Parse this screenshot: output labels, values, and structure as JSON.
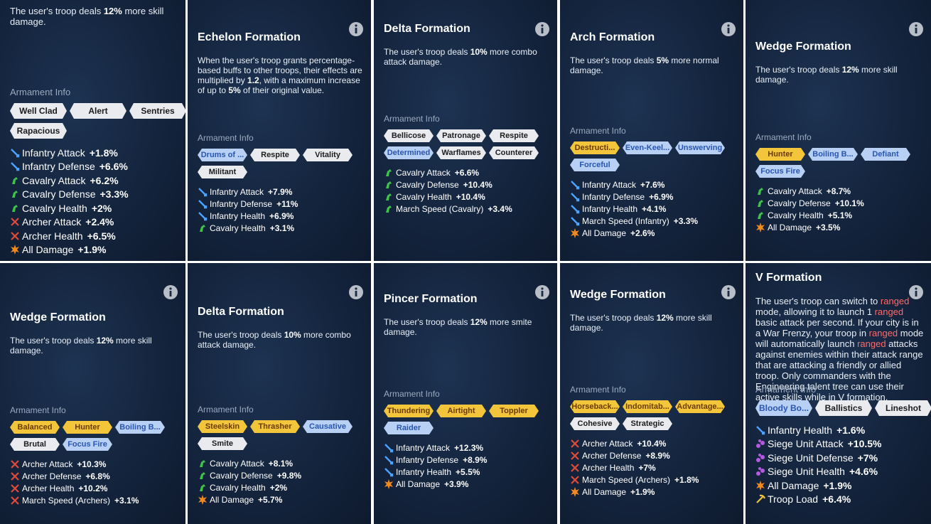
{
  "panels": [
    {
      "description": [
        {
          "text": "The user's troop deals "
        },
        {
          "text": "12%",
          "style": "bold"
        },
        {
          "text": " more skill damage."
        }
      ],
      "section_label": "Armament Info",
      "tags": [
        {
          "label": "Well Clad",
          "color": "white"
        },
        {
          "label": "Alert",
          "color": "white"
        },
        {
          "label": "Sentries",
          "color": "white"
        },
        {
          "label": "Rapacious",
          "color": "white"
        }
      ],
      "stats": [
        {
          "name": "Infantry Attack",
          "value": "+1.8%",
          "kind": "infantry"
        },
        {
          "name": "Infantry Defense",
          "value": "+6.6%",
          "kind": "infantry"
        },
        {
          "name": "Cavalry Attack",
          "value": "+6.2%",
          "kind": "cavalry"
        },
        {
          "name": "Cavalry Defense",
          "value": "+3.3%",
          "kind": "cavalry"
        },
        {
          "name": "Cavalry Health",
          "value": "+2%",
          "kind": "cavalry"
        },
        {
          "name": "Archer Attack",
          "value": "+2.4%",
          "kind": "archer"
        },
        {
          "name": "Archer Health",
          "value": "+6.5%",
          "kind": "archer"
        },
        {
          "name": "All Damage",
          "value": "+1.9%",
          "kind": "damage"
        }
      ]
    },
    {
      "title": "Echelon Formation",
      "description": [
        {
          "text": "When the user's troop grants percentage-based buffs to other troops, their effects are multiplied by "
        },
        {
          "text": "1.2",
          "style": "bold"
        },
        {
          "text": ", with a maximum increase of up to "
        },
        {
          "text": "5%",
          "style": "bold"
        },
        {
          "text": " of their original value."
        }
      ],
      "section_label": "Armament Info",
      "tags": [
        {
          "label": "Drums of ...",
          "color": "blue"
        },
        {
          "label": "Respite",
          "color": "white"
        },
        {
          "label": "Vitality",
          "color": "white"
        },
        {
          "label": "Militant",
          "color": "white"
        }
      ],
      "stats": [
        {
          "name": "Infantry Attack",
          "value": "+7.9%",
          "kind": "infantry"
        },
        {
          "name": "Infantry Defense",
          "value": "+11%",
          "kind": "infantry"
        },
        {
          "name": "Infantry Health",
          "value": "+6.9%",
          "kind": "infantry"
        },
        {
          "name": "Cavalry Health",
          "value": "+3.1%",
          "kind": "cavalry"
        }
      ]
    },
    {
      "title": "Delta Formation",
      "description": [
        {
          "text": "The user's troop deals "
        },
        {
          "text": "10%",
          "style": "bold"
        },
        {
          "text": " more combo attack damage."
        }
      ],
      "section_label": "Armament Info",
      "tags": [
        {
          "label": "Bellicose",
          "color": "white"
        },
        {
          "label": "Patronage",
          "color": "white"
        },
        {
          "label": "Respite",
          "color": "white"
        },
        {
          "label": "Determined",
          "color": "blue"
        },
        {
          "label": "Warflames",
          "color": "white"
        },
        {
          "label": "Counterer",
          "color": "white"
        }
      ],
      "stats": [
        {
          "name": "Cavalry Attack",
          "value": "+6.6%",
          "kind": "cavalry"
        },
        {
          "name": "Cavalry Defense",
          "value": "+10.4%",
          "kind": "cavalry"
        },
        {
          "name": "Cavalry Health",
          "value": "+10.4%",
          "kind": "cavalry"
        },
        {
          "name": "March Speed (Cavalry)",
          "value": "+3.4%",
          "kind": "cavalry"
        }
      ]
    },
    {
      "title": "Arch Formation",
      "description": [
        {
          "text": "The user's troop deals "
        },
        {
          "text": "5%",
          "style": "bold"
        },
        {
          "text": " more normal damage."
        }
      ],
      "section_label": "Armament Info",
      "tags": [
        {
          "label": "Destructi...",
          "color": "gold"
        },
        {
          "label": "Even-Keel...",
          "color": "blue"
        },
        {
          "label": "Unswerving",
          "color": "blue"
        },
        {
          "label": "Forceful",
          "color": "blue"
        }
      ],
      "stats": [
        {
          "name": "Infantry Attack",
          "value": "+7.6%",
          "kind": "infantry"
        },
        {
          "name": "Infantry Defense",
          "value": "+6.9%",
          "kind": "infantry"
        },
        {
          "name": "Infantry Health",
          "value": "+4.1%",
          "kind": "infantry"
        },
        {
          "name": "March Speed (Infantry)",
          "value": "+3.3%",
          "kind": "infantry"
        },
        {
          "name": "All Damage",
          "value": "+2.6%",
          "kind": "damage"
        }
      ]
    },
    {
      "title": "Wedge Formation",
      "description": [
        {
          "text": "The user's troop deals "
        },
        {
          "text": "12%",
          "style": "bold"
        },
        {
          "text": " more skill damage."
        }
      ],
      "section_label": "Armament Info",
      "tags": [
        {
          "label": "Hunter",
          "color": "gold"
        },
        {
          "label": "Boiling B...",
          "color": "blue"
        },
        {
          "label": "Defiant",
          "color": "blue"
        },
        {
          "label": "Focus Fire",
          "color": "blue"
        }
      ],
      "stats": [
        {
          "name": "Cavalry Attack",
          "value": "+8.7%",
          "kind": "cavalry"
        },
        {
          "name": "Cavalry Defense",
          "value": "+10.1%",
          "kind": "cavalry"
        },
        {
          "name": "Cavalry Health",
          "value": "+5.1%",
          "kind": "cavalry"
        },
        {
          "name": "All Damage",
          "value": "+3.5%",
          "kind": "damage"
        }
      ]
    },
    {
      "title": "Wedge Formation",
      "description": [
        {
          "text": "The user's troop deals "
        },
        {
          "text": "12%",
          "style": "bold"
        },
        {
          "text": " more skill damage."
        }
      ],
      "section_label": "Armament Info",
      "tags": [
        {
          "label": "Balanced",
          "color": "gold"
        },
        {
          "label": "Hunter",
          "color": "gold"
        },
        {
          "label": "Boiling B...",
          "color": "blue"
        },
        {
          "label": "Brutal",
          "color": "white"
        },
        {
          "label": "Focus Fire",
          "color": "blue"
        }
      ],
      "stats": [
        {
          "name": "Archer Attack",
          "value": "+10.3%",
          "kind": "archer"
        },
        {
          "name": "Archer Defense",
          "value": "+6.8%",
          "kind": "archer"
        },
        {
          "name": "Archer Health",
          "value": "+10.2%",
          "kind": "archer"
        },
        {
          "name": "March Speed (Archers)",
          "value": "+3.1%",
          "kind": "archer"
        }
      ]
    },
    {
      "title": "Delta Formation",
      "description": [
        {
          "text": "The user's troop deals "
        },
        {
          "text": "10%",
          "style": "bold"
        },
        {
          "text": " more combo attack damage."
        }
      ],
      "section_label": "Armament Info",
      "tags": [
        {
          "label": "Steelskin",
          "color": "gold"
        },
        {
          "label": "Thrasher",
          "color": "gold"
        },
        {
          "label": "Causative",
          "color": "blue"
        },
        {
          "label": "Smite",
          "color": "white"
        }
      ],
      "stats": [
        {
          "name": "Cavalry Attack",
          "value": "+8.1%",
          "kind": "cavalry"
        },
        {
          "name": "Cavalry Defense",
          "value": "+9.8%",
          "kind": "cavalry"
        },
        {
          "name": "Cavalry Health",
          "value": "+2%",
          "kind": "cavalry"
        },
        {
          "name": "All Damage",
          "value": "+5.7%",
          "kind": "damage"
        }
      ]
    },
    {
      "title": "Pincer Formation",
      "description": [
        {
          "text": "The user's troop deals "
        },
        {
          "text": "12%",
          "style": "bold"
        },
        {
          "text": " more smite damage."
        }
      ],
      "section_label": "Armament Info",
      "tags": [
        {
          "label": "Thundering",
          "color": "gold"
        },
        {
          "label": "Airtight",
          "color": "gold"
        },
        {
          "label": "Toppler",
          "color": "gold"
        },
        {
          "label": "Raider",
          "color": "blue"
        }
      ],
      "stats": [
        {
          "name": "Infantry Attack",
          "value": "+12.3%",
          "kind": "infantry"
        },
        {
          "name": "Infantry Defense",
          "value": "+8.9%",
          "kind": "infantry"
        },
        {
          "name": "Infantry Health",
          "value": "+5.5%",
          "kind": "infantry"
        },
        {
          "name": "All Damage",
          "value": "+3.9%",
          "kind": "damage"
        }
      ]
    },
    {
      "title": "Wedge Formation",
      "description": [
        {
          "text": "The user's troop deals "
        },
        {
          "text": "12%",
          "style": "bold"
        },
        {
          "text": " more skill damage."
        }
      ],
      "section_label": "Armament Info",
      "tags": [
        {
          "label": "Horseback...",
          "color": "gold"
        },
        {
          "label": "Indomitab...",
          "color": "gold"
        },
        {
          "label": "Advantage...",
          "color": "gold"
        },
        {
          "label": "Cohesive",
          "color": "white"
        },
        {
          "label": "Strategic",
          "color": "white"
        }
      ],
      "stats": [
        {
          "name": "Archer Attack",
          "value": "+10.4%",
          "kind": "archer"
        },
        {
          "name": "Archer Defense",
          "value": "+8.9%",
          "kind": "archer"
        },
        {
          "name": "Archer Health",
          "value": "+7%",
          "kind": "archer"
        },
        {
          "name": "March Speed (Archers)",
          "value": "+1.8%",
          "kind": "archer"
        },
        {
          "name": "All Damage",
          "value": "+1.9%",
          "kind": "damage"
        }
      ]
    },
    {
      "title": "V Formation",
      "description": [
        {
          "text": "The user's troop can switch to "
        },
        {
          "text": "ranged",
          "style": "red"
        },
        {
          "text": " mode, allowing it to launch 1 "
        },
        {
          "text": "ranged",
          "style": "red"
        },
        {
          "text": " basic attack per second. If your city is in a War Frenzy, your troop in "
        },
        {
          "text": "ranged",
          "style": "red"
        },
        {
          "text": " mode will automatically launch "
        },
        {
          "text": "ranged",
          "style": "red"
        },
        {
          "text": " attacks against enemies within their attack range that are attacking a friendly or allied troop. Only commanders with the Engineering talent tree can use their active skills while in V formation."
        }
      ],
      "section_label": "Armament Info",
      "tags": [
        {
          "label": "Bloody Bo...",
          "color": "blue"
        },
        {
          "label": "Ballistics",
          "color": "white"
        },
        {
          "label": "Lineshot",
          "color": "white"
        }
      ],
      "stats": [
        {
          "name": "Infantry Health",
          "value": "+1.6%",
          "kind": "infantry"
        },
        {
          "name": "Siege Unit Attack",
          "value": "+10.5%",
          "kind": "siege"
        },
        {
          "name": "Siege Unit Defense",
          "value": "+7%",
          "kind": "siege"
        },
        {
          "name": "Siege Unit Health",
          "value": "+4.6%",
          "kind": "siege"
        },
        {
          "name": "All Damage",
          "value": "+1.9%",
          "kind": "damage"
        },
        {
          "name": "Troop Load",
          "value": "+6.4%",
          "kind": "load"
        }
      ]
    }
  ]
}
